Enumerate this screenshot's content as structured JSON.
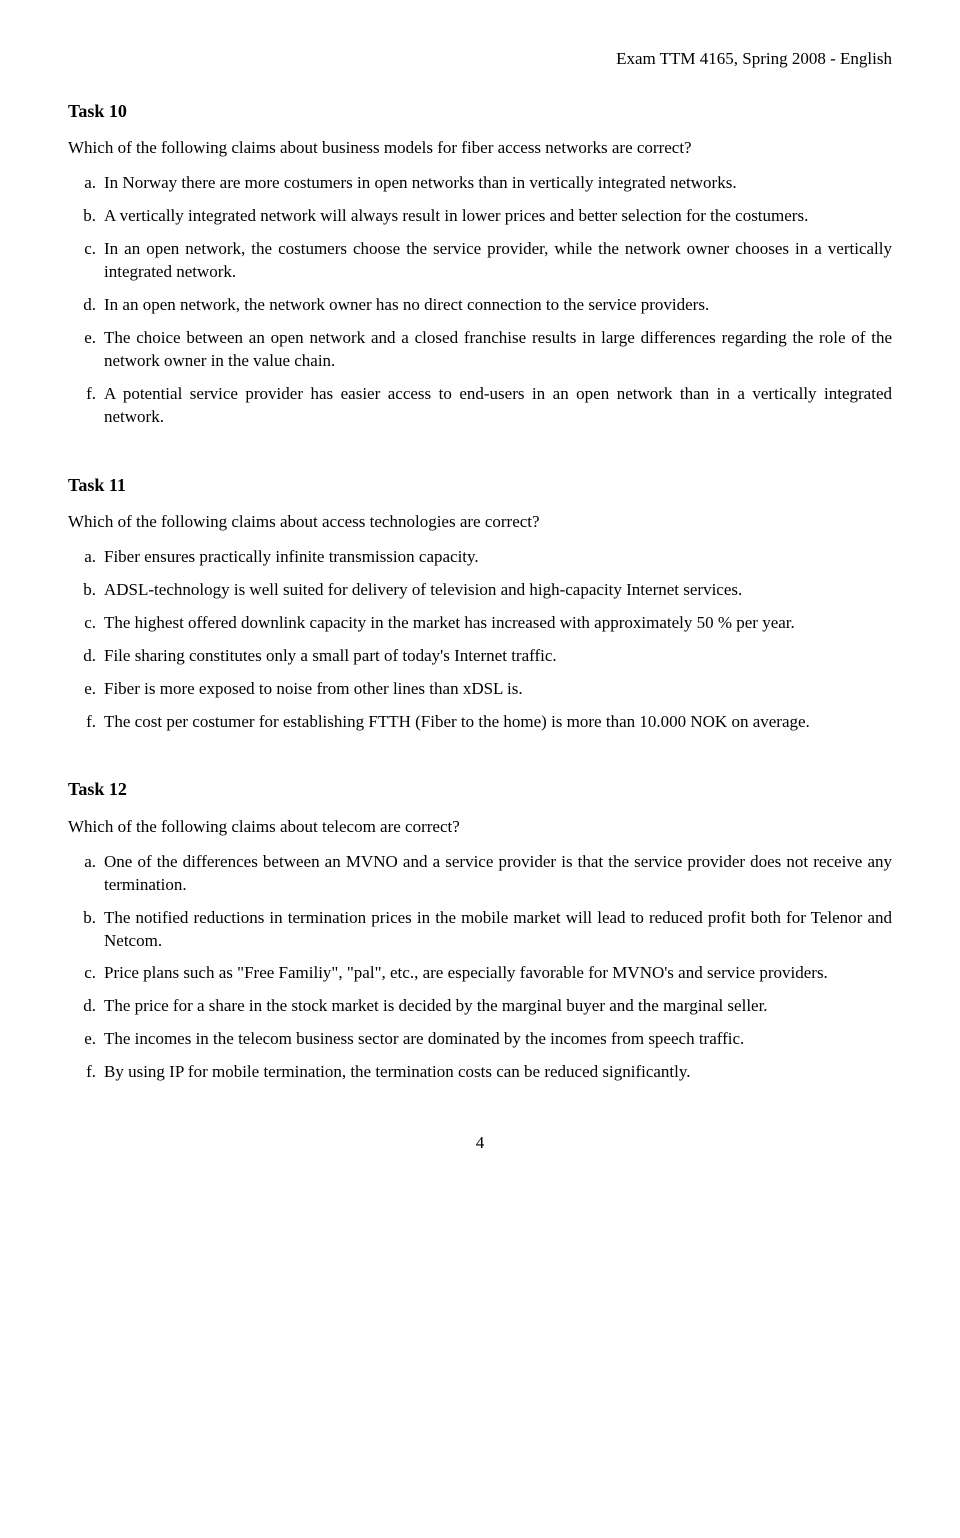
{
  "header": "Exam TTM 4165, Spring 2008 - English",
  "tasks": [
    {
      "heading": "Task 10",
      "question": "Which of the following claims about business models for fiber access networks are correct?",
      "options": [
        {
          "letter": "a.",
          "text": "In Norway there are more costumers in open networks than in vertically integrated networks."
        },
        {
          "letter": "b.",
          "text": "A vertically integrated network will always result in lower prices and better selection for the costumers."
        },
        {
          "letter": "c.",
          "text": "In an open network, the costumers choose the service provider, while the network owner chooses in a vertically integrated network."
        },
        {
          "letter": "d.",
          "text": "In an open network, the network owner has no direct connection to the service providers."
        },
        {
          "letter": "e.",
          "text": "The choice between an open network and a closed franchise results in large differences regarding the role of the network owner in the value chain."
        },
        {
          "letter": "f.",
          "text": "A potential service provider has easier access to end-users in an open network than in a vertically integrated network."
        }
      ]
    },
    {
      "heading": "Task 11",
      "question": "Which of the following claims about access technologies are correct?",
      "options": [
        {
          "letter": "a.",
          "text": "Fiber ensures practically infinite transmission capacity."
        },
        {
          "letter": "b.",
          "text": "ADSL-technology is well suited for delivery of television and high-capacity Internet services."
        },
        {
          "letter": "c.",
          "text": "The highest offered downlink capacity in the market has increased with approximately 50 % per year."
        },
        {
          "letter": "d.",
          "text": "File sharing constitutes only a small part of today's Internet traffic."
        },
        {
          "letter": "e.",
          "text": "Fiber is more exposed to noise from other lines than xDSL is."
        },
        {
          "letter": "f.",
          "text": "The cost per costumer for establishing FTTH (Fiber to the home) is more than 10.000 NOK on average."
        }
      ]
    },
    {
      "heading": "Task 12",
      "question": "Which of the following claims about telecom are correct?",
      "options": [
        {
          "letter": "a.",
          "text": "One of the differences between an MVNO and a service provider is that the service provider does not receive any termination."
        },
        {
          "letter": "b.",
          "text": "The notified reductions in termination prices in the mobile market will lead to reduced profit both for Telenor and Netcom."
        },
        {
          "letter": "c.",
          "text": "Price plans such as \"Free Familiy\", \"pal\", etc., are especially favorable for MVNO's and service providers."
        },
        {
          "letter": "d.",
          "text": "The price for a share in the stock market is decided by the marginal buyer and the marginal seller."
        },
        {
          "letter": "e.",
          "text": "The incomes in the telecom business sector are dominated by the incomes from speech traffic."
        },
        {
          "letter": "f.",
          "text": "By using IP for mobile termination, the termination costs can be reduced significantly."
        }
      ]
    }
  ],
  "page_number": "4"
}
